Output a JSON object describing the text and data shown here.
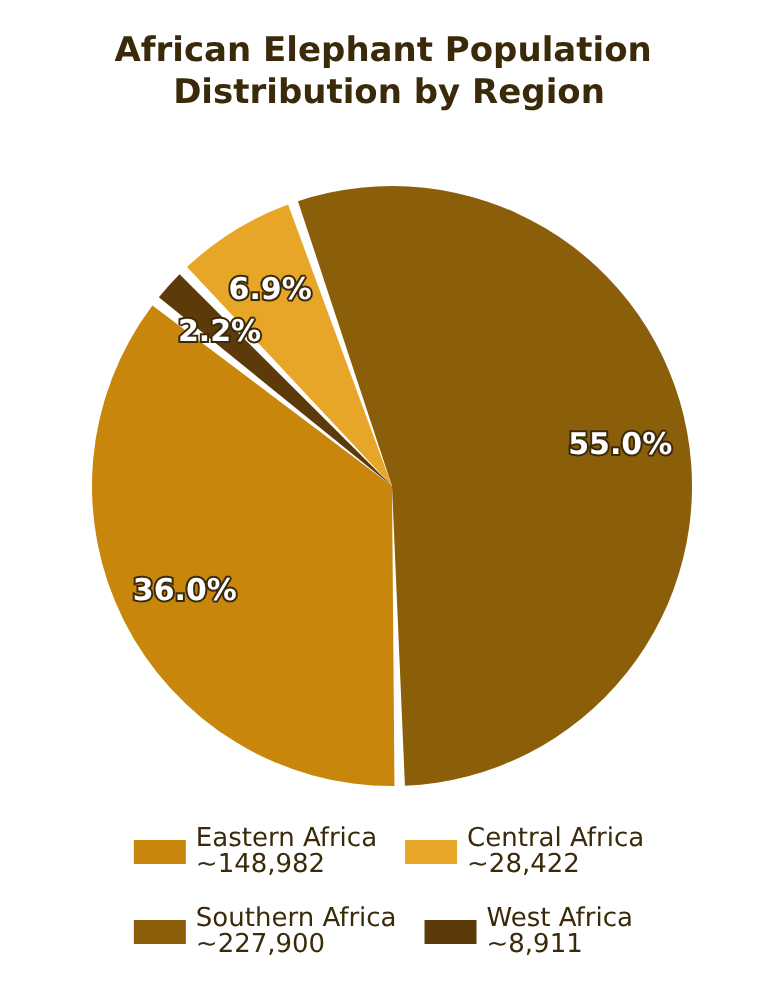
{
  "chart_data": {
    "type": "pie",
    "title": "African Elephant Population Distribution by Region",
    "categories": [
      "Eastern Africa\n~148,982",
      "Southern Africa\n~227,900",
      "Central Africa\n~28,422",
      "West Africa\n~8,911"
    ],
    "values": [
      36.0,
      55.0,
      6.9,
      2.2
    ],
    "value_labels": [
      "36.0%",
      "55.0%",
      "6.9%",
      "2.2%"
    ],
    "colors": [
      "#c8860d",
      "#8b5e0a",
      "#e8a628",
      "#5c3a0a"
    ],
    "legend": "bottom"
  }
}
